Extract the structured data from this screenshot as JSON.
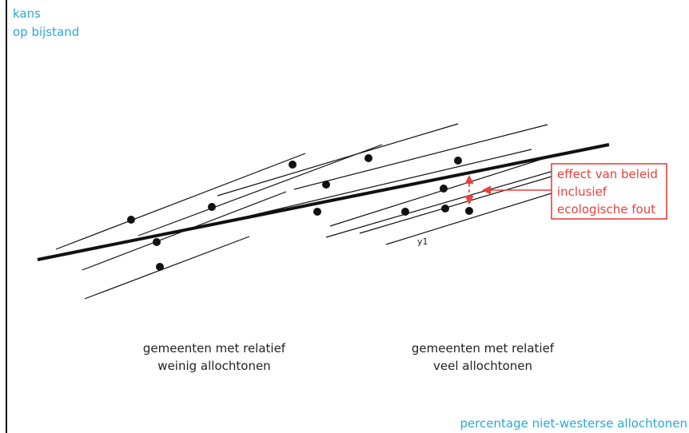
{
  "colors": {
    "axis_label": "#2aa8d8",
    "lines": "#111111",
    "points": "#111111",
    "callout": "#e8423a",
    "text": "#222222"
  },
  "axes": {
    "y_label_line1": "kans",
    "y_label_line2": "op bijstand",
    "x_label": "percentage niet-westerse allochtonen"
  },
  "groups": {
    "left_line1": "gemeenten met relatief",
    "left_line2": "weinig allochtonen",
    "right_line1": "gemeenten met relatief",
    "right_line2": "veel allochtonen"
  },
  "point_label": "y1",
  "callout": {
    "line1": "effect van beleid",
    "line2": "inclusief",
    "line3": "ecologische fout"
  }
}
